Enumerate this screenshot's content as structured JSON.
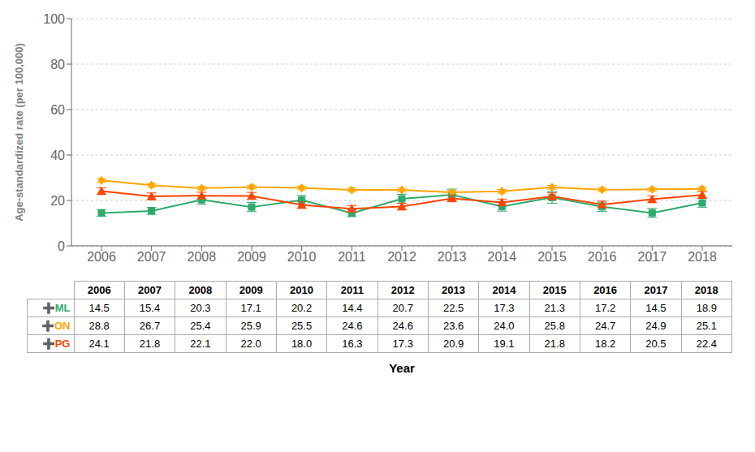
{
  "chart_data": {
    "type": "line",
    "xlabel": "Year",
    "ylabel": "Age-standardized rate (per 100,000)",
    "x": [
      2006,
      2007,
      2008,
      2009,
      2010,
      2011,
      2012,
      2013,
      2014,
      2015,
      2016,
      2017,
      2018
    ],
    "series": [
      {
        "name": "➕ML",
        "color": "#2EAA6E",
        "marker": "square",
        "values": [
          14.5,
          15.4,
          20.3,
          17.1,
          20.2,
          14.4,
          20.7,
          22.5,
          17.3,
          21.3,
          17.2,
          14.5,
          18.9
        ],
        "value_labels": [
          "14.5",
          "15.4",
          "20.3",
          "17.1",
          "20.2",
          "14.4",
          "20.7",
          "22.5",
          "17.3",
          "21.3",
          "17.2",
          "14.5",
          "18.9"
        ],
        "errors": [
          1.5,
          1.5,
          2.0,
          2.0,
          2.0,
          1.5,
          2.0,
          2.5,
          2.0,
          2.5,
          2.0,
          2.0,
          2.0
        ]
      },
      {
        "name": "➕ON",
        "color": "#FFA500",
        "marker": "diamond",
        "values": [
          28.8,
          26.7,
          25.4,
          25.9,
          25.5,
          24.6,
          24.6,
          23.6,
          24.0,
          25.8,
          24.7,
          24.9,
          25.1
        ],
        "value_labels": [
          "28.8",
          "26.7",
          "25.4",
          "25.9",
          "25.5",
          "24.6",
          "24.6",
          "23.6",
          "24.0",
          "25.8",
          "24.7",
          "24.9",
          "25.1"
        ],
        "errors": [
          0.8,
          0.8,
          0.8,
          0.8,
          0.8,
          0.8,
          0.8,
          0.8,
          0.8,
          0.8,
          0.8,
          0.8,
          0.8
        ]
      },
      {
        "name": "➕PG",
        "color": "#FF4500",
        "marker": "triangle",
        "values": [
          24.1,
          21.8,
          22.1,
          22.0,
          18.0,
          16.3,
          17.3,
          20.9,
          19.1,
          21.8,
          18.2,
          20.5,
          22.4
        ],
        "value_labels": [
          "24.1",
          "21.8",
          "22.1",
          "22.0",
          "18.0",
          "16.3",
          "17.3",
          "20.9",
          "19.1",
          "21.8",
          "18.2",
          "20.5",
          "22.4"
        ],
        "errors": [
          1.5,
          1.5,
          1.5,
          1.5,
          1.5,
          1.5,
          1.5,
          1.5,
          1.5,
          1.5,
          1.5,
          1.5,
          1.5
        ]
      }
    ],
    "xlim": [
      2005.4,
      2018.6
    ],
    "xticks": [
      2006,
      2007,
      2008,
      2009,
      2010,
      2011,
      2012,
      2013,
      2014,
      2015,
      2016,
      2017,
      2018
    ],
    "ylim": [
      0,
      100
    ],
    "yticks": [
      0,
      20,
      40,
      60,
      80,
      100
    ],
    "grid": true
  }
}
